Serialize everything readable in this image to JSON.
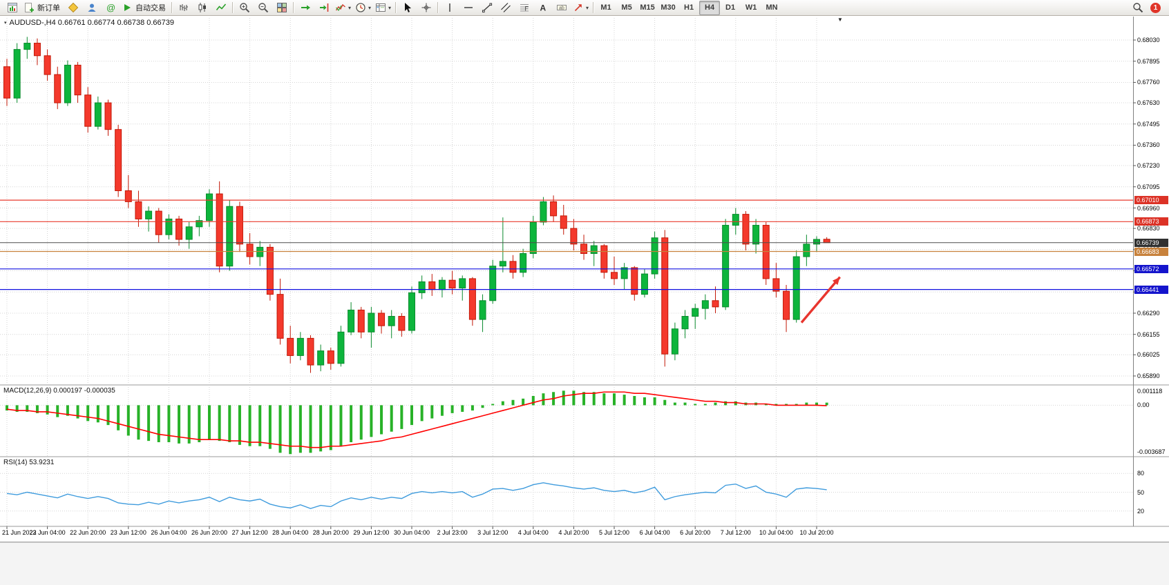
{
  "icons": {
    "symbol_marker": "▾",
    "expand_arrow": "▼",
    "dropdown_caret": "▾"
  },
  "toolbar": {
    "items": [
      {
        "t": "btn",
        "name": "new-chart-button",
        "icon": "chart-window-icon"
      },
      {
        "t": "btnlabel",
        "name": "new-order-button",
        "icon": "new-order-icon",
        "label": "新订单"
      },
      {
        "t": "btn",
        "name": "metaeditor-button",
        "icon": "metaeditor-icon"
      },
      {
        "t": "btn",
        "name": "navigator-button",
        "icon": "navigator-icon"
      },
      {
        "t": "btn",
        "name": "community-button",
        "icon": "community-icon"
      },
      {
        "t": "btnlabel",
        "name": "autotrading-button",
        "icon": "autotrading-icon",
        "label": "自动交易"
      },
      {
        "t": "sep"
      },
      {
        "t": "btn",
        "name": "bar-chart-button",
        "icon": "bar-chart-icon"
      },
      {
        "t": "btn",
        "name": "candlestick-chart-button",
        "icon": "candlestick-icon"
      },
      {
        "t": "btn",
        "name": "line-chart-button",
        "icon": "line-chart-icon"
      },
      {
        "t": "sep"
      },
      {
        "t": "btn",
        "name": "zoom-in-button",
        "icon": "zoom-in-icon"
      },
      {
        "t": "btn",
        "name": "zoom-out-button",
        "icon": "zoom-out-icon"
      },
      {
        "t": "btn",
        "name": "tile-windows-button",
        "icon": "tile-windows-icon"
      },
      {
        "t": "sep"
      },
      {
        "t": "btn",
        "name": "auto-scroll-button",
        "icon": "auto-scroll-icon"
      },
      {
        "t": "btn",
        "name": "chart-shift-button",
        "icon": "chart-shift-icon"
      },
      {
        "t": "drop",
        "name": "indicators-dropdown",
        "icon": "indicators-icon"
      },
      {
        "t": "drop",
        "name": "periods-dropdown",
        "icon": "clock-icon"
      },
      {
        "t": "drop",
        "name": "templates-dropdown",
        "icon": "templates-icon"
      },
      {
        "t": "sep"
      },
      {
        "t": "btn",
        "name": "cursor-button",
        "icon": "cursor-icon"
      },
      {
        "t": "btn",
        "name": "crosshair-button",
        "icon": "crosshair-icon"
      },
      {
        "t": "sep"
      },
      {
        "t": "btn",
        "name": "vertical-line-button",
        "icon": "vertical-line-icon"
      },
      {
        "t": "btn",
        "name": "horizontal-line-button",
        "icon": "horizontal-line-icon"
      },
      {
        "t": "btn",
        "name": "trendline-button",
        "icon": "trendline-icon"
      },
      {
        "t": "btn",
        "name": "channel-button",
        "icon": "channel-icon"
      },
      {
        "t": "btn",
        "name": "fibonacci-button",
        "icon": "fibonacci-icon"
      },
      {
        "t": "btn",
        "name": "text-button",
        "icon": "text-icon"
      },
      {
        "t": "btn",
        "name": "text-label-button",
        "icon": "text-label-icon"
      },
      {
        "t": "drop",
        "name": "arrows-dropdown",
        "icon": "arrow-tool-icon"
      },
      {
        "t": "sep"
      }
    ],
    "timeframes": [
      "M1",
      "M5",
      "M15",
      "M30",
      "H1",
      "H4",
      "D1",
      "W1",
      "MN"
    ],
    "active_timeframe": "H4",
    "notification_badge": "1"
  },
  "chart": {
    "title": "AUDUSD-,H4  0.66761 0.66774 0.66738 0.66739",
    "symbol": "AUDUSD-",
    "period": "H4"
  },
  "chart_data": {
    "type": "candlestick",
    "symbol": "AUDUSD",
    "timeframe": "H4",
    "bars_per_label": 4,
    "x_labels": [
      "21 Jun 2023",
      "22 Jun 04:00",
      "22 Jun 20:00",
      "23 Jun 12:00",
      "26 Jun 04:00",
      "26 Jun 20:00",
      "27 Jun 12:00",
      "28 Jun 04:00",
      "28 Jun 20:00",
      "29 Jun 12:00",
      "30 Jun 04:00",
      "2 Jul 23:00",
      "3 Jul 12:00",
      "4 Jul 04:00",
      "4 Jul 20:00",
      "5 Jul 12:00",
      "6 Jul 04:00",
      "6 Jul 20:00",
      "7 Jul 12:00",
      "10 Jul 04:00",
      "10 Jul 20:00"
    ],
    "price_axis_labels": [
      "0.68030",
      "0.67895",
      "0.67760",
      "0.67630",
      "0.67495",
      "0.67360",
      "0.67230",
      "0.67095",
      "0.66960",
      "0.66830",
      "0.66695",
      "0.66560",
      "0.66425",
      "0.66290",
      "0.66155",
      "0.66025",
      "0.65890"
    ],
    "candles": [
      [
        0.6786,
        0.6791,
        0.6761,
        0.6766
      ],
      [
        0.6766,
        0.6801,
        0.6763,
        0.6797
      ],
      [
        0.6797,
        0.6805,
        0.6791,
        0.6801
      ],
      [
        0.6801,
        0.6804,
        0.6787,
        0.6793
      ],
      [
        0.6793,
        0.6797,
        0.6777,
        0.6781
      ],
      [
        0.6781,
        0.6786,
        0.6759,
        0.6763
      ],
      [
        0.6763,
        0.679,
        0.6761,
        0.6787
      ],
      [
        0.6787,
        0.6789,
        0.6763,
        0.6768
      ],
      [
        0.6768,
        0.6773,
        0.6744,
        0.6748
      ],
      [
        0.6748,
        0.6767,
        0.6746,
        0.6763
      ],
      [
        0.6763,
        0.6765,
        0.6742,
        0.6746
      ],
      [
        0.6746,
        0.6749,
        0.6703,
        0.6707
      ],
      [
        0.6707,
        0.6717,
        0.6696,
        0.67
      ],
      [
        0.67,
        0.6707,
        0.6684,
        0.6689
      ],
      [
        0.6689,
        0.6697,
        0.6681,
        0.6694
      ],
      [
        0.6694,
        0.6696,
        0.6674,
        0.6679
      ],
      [
        0.6679,
        0.6692,
        0.6676,
        0.6689
      ],
      [
        0.6689,
        0.6691,
        0.6672,
        0.6676
      ],
      [
        0.6676,
        0.6687,
        0.667,
        0.6684
      ],
      [
        0.6684,
        0.6691,
        0.6678,
        0.6688
      ],
      [
        0.6688,
        0.6708,
        0.6684,
        0.6705
      ],
      [
        0.6705,
        0.6713,
        0.6655,
        0.6659
      ],
      [
        0.6659,
        0.6701,
        0.6656,
        0.6697
      ],
      [
        0.6697,
        0.67,
        0.6668,
        0.6673
      ],
      [
        0.6673,
        0.668,
        0.666,
        0.6665
      ],
      [
        0.6665,
        0.6675,
        0.6659,
        0.6671
      ],
      [
        0.6671,
        0.6673,
        0.6637,
        0.6641
      ],
      [
        0.6641,
        0.6651,
        0.6609,
        0.6613
      ],
      [
        0.6613,
        0.6621,
        0.6597,
        0.6602
      ],
      [
        0.6602,
        0.6617,
        0.6599,
        0.6613
      ],
      [
        0.6613,
        0.6615,
        0.6591,
        0.6596
      ],
      [
        0.6596,
        0.6609,
        0.6592,
        0.6605
      ],
      [
        0.6605,
        0.6607,
        0.6593,
        0.6597
      ],
      [
        0.6597,
        0.6621,
        0.6595,
        0.6617
      ],
      [
        0.6617,
        0.6636,
        0.6615,
        0.6631
      ],
      [
        0.6631,
        0.6633,
        0.6613,
        0.6617
      ],
      [
        0.6617,
        0.6633,
        0.6607,
        0.6629
      ],
      [
        0.6629,
        0.6631,
        0.6616,
        0.6621
      ],
      [
        0.6621,
        0.6631,
        0.6613,
        0.6627
      ],
      [
        0.6627,
        0.6629,
        0.6614,
        0.6618
      ],
      [
        0.6618,
        0.6646,
        0.6616,
        0.6642
      ],
      [
        0.6642,
        0.6653,
        0.6638,
        0.6649
      ],
      [
        0.6649,
        0.6654,
        0.664,
        0.6644
      ],
      [
        0.6644,
        0.6652,
        0.6639,
        0.665
      ],
      [
        0.665,
        0.6656,
        0.6641,
        0.6645
      ],
      [
        0.6645,
        0.6653,
        0.6637,
        0.6651
      ],
      [
        0.6651,
        0.6652,
        0.6621,
        0.6625
      ],
      [
        0.6625,
        0.6641,
        0.6617,
        0.6637
      ],
      [
        0.6637,
        0.6663,
        0.6635,
        0.6659
      ],
      [
        0.6659,
        0.669,
        0.6655,
        0.6662
      ],
      [
        0.6662,
        0.6666,
        0.6651,
        0.6655
      ],
      [
        0.6655,
        0.667,
        0.6652,
        0.6667
      ],
      [
        0.6667,
        0.6691,
        0.6664,
        0.6687
      ],
      [
        0.6687,
        0.6703,
        0.6685,
        0.67
      ],
      [
        0.67,
        0.6704,
        0.6687,
        0.6691
      ],
      [
        0.6691,
        0.6698,
        0.6679,
        0.6683
      ],
      [
        0.6683,
        0.6689,
        0.6669,
        0.6673
      ],
      [
        0.6673,
        0.6679,
        0.6663,
        0.6667
      ],
      [
        0.6667,
        0.6675,
        0.6659,
        0.6672
      ],
      [
        0.6672,
        0.6673,
        0.6651,
        0.6655
      ],
      [
        0.6655,
        0.6665,
        0.6647,
        0.6651
      ],
      [
        0.6651,
        0.6661,
        0.6644,
        0.6658
      ],
      [
        0.6658,
        0.6659,
        0.6637,
        0.6641
      ],
      [
        0.6641,
        0.6657,
        0.6639,
        0.6654
      ],
      [
        0.6654,
        0.6681,
        0.6651,
        0.6677
      ],
      [
        0.6677,
        0.6682,
        0.6595,
        0.6603
      ],
      [
        0.6603,
        0.6623,
        0.6599,
        0.6619
      ],
      [
        0.6619,
        0.6631,
        0.6613,
        0.6627
      ],
      [
        0.6627,
        0.6635,
        0.6619,
        0.6632
      ],
      [
        0.6632,
        0.6641,
        0.6625,
        0.6637
      ],
      [
        0.6637,
        0.6646,
        0.6629,
        0.6633
      ],
      [
        0.6633,
        0.6689,
        0.6631,
        0.6685
      ],
      [
        0.6685,
        0.6696,
        0.6679,
        0.6692
      ],
      [
        0.6692,
        0.6694,
        0.6669,
        0.6673
      ],
      [
        0.6673,
        0.6689,
        0.6667,
        0.6685
      ],
      [
        0.6685,
        0.6687,
        0.6647,
        0.6651
      ],
      [
        0.6651,
        0.6661,
        0.6639,
        0.6643
      ],
      [
        0.6643,
        0.6647,
        0.6617,
        0.6625
      ],
      [
        0.6625,
        0.6669,
        0.6623,
        0.6665
      ],
      [
        0.6665,
        0.6679,
        0.6659,
        0.6673
      ],
      [
        0.6673,
        0.6678,
        0.6668,
        0.6676
      ],
      [
        0.66761,
        0.66774,
        0.66738,
        0.66739
      ]
    ],
    "levels": [
      {
        "price": 0.6701,
        "label": "0.67010",
        "box_color": "#dc3226",
        "line_color": "#e8392c",
        "name": "resistance-line-1"
      },
      {
        "price": 0.66873,
        "label": "0.66873",
        "box_color": "#dc3226",
        "line_color": "#e8392c",
        "name": "resistance-line-2"
      },
      {
        "price": 0.66739,
        "label": "0.66739",
        "box_color": "#303030",
        "line_color": "#4d4d4d",
        "name": "current-price-line"
      },
      {
        "price": 0.66683,
        "label": "0.66683",
        "box_color": "#c8823c",
        "line_color": "#c8823c",
        "name": "pivot-line"
      },
      {
        "price": 0.66572,
        "label": "0.66572",
        "box_color": "#1414cc",
        "line_color": "#1010e0",
        "name": "support-line-1"
      },
      {
        "price": 0.66441,
        "label": "0.66441",
        "box_color": "#1414cc",
        "line_color": "#1010e0",
        "name": "support-line-2"
      }
    ],
    "annotations": [
      {
        "type": "arrow",
        "from_bar": 78.5,
        "from_price": 0.6623,
        "to_bar": 82.3,
        "to_price": 0.6652,
        "color": "#e8352e"
      }
    ],
    "colors": {
      "up": "#0db53c",
      "up_border": "#0a8a2d",
      "down": "#f4392c",
      "down_border": "#c21807",
      "macd_histogram": "#28b228",
      "macd_signal": "#ff0000",
      "rsi_line": "#3e9bdd",
      "grid": "#d4d4d4",
      "axis_text": "#000000"
    }
  },
  "macd": {
    "label": "MACD(12,26,9) 0.000197 -0.000035",
    "axis_labels": [
      "0.001118",
      "0.00",
      "-0.003687"
    ],
    "scale_max": 0.001118,
    "scale_min": -0.003687,
    "histogram": [
      -0.0004,
      -0.0005,
      -0.0005,
      -0.0006,
      -0.0007,
      -0.0009,
      -0.0008,
      -0.001,
      -0.0012,
      -0.0013,
      -0.0015,
      -0.0019,
      -0.0023,
      -0.0026,
      -0.0027,
      -0.0028,
      -0.0028,
      -0.0029,
      -0.0029,
      -0.0028,
      -0.0026,
      -0.0027,
      -0.0028,
      -0.003,
      -0.0031,
      -0.0031,
      -0.0033,
      -0.0036,
      -0.0037,
      -0.0036,
      -0.0036,
      -0.0035,
      -0.0034,
      -0.0031,
      -0.0028,
      -0.0026,
      -0.0024,
      -0.0022,
      -0.002,
      -0.0018,
      -0.0015,
      -0.0012,
      -0.001,
      -0.0008,
      -0.0006,
      -0.0005,
      -0.0004,
      -0.0002,
      0.0001,
      0.0003,
      0.0004,
      0.0005,
      0.0007,
      0.0009,
      0.001,
      0.0011,
      0.0011,
      0.001,
      0.001,
      0.0009,
      0.0009,
      0.0008,
      0.0007,
      0.0006,
      0.0006,
      0.0004,
      0.0002,
      0.0002,
      0.0001,
      0.0001,
      0.0002,
      0.0003,
      0.0003,
      0.0002,
      0.0002,
      0.0001,
      0.0001,
      0.0001,
      0.0001,
      0.0002,
      0.0002,
      0.000197
    ],
    "signal": [
      -0.0003,
      -0.0004,
      -0.0004,
      -0.0005,
      -0.0005,
      -0.0006,
      -0.0007,
      -0.0008,
      -0.0009,
      -0.001,
      -0.0012,
      -0.0014,
      -0.0016,
      -0.0018,
      -0.002,
      -0.0022,
      -0.0023,
      -0.0024,
      -0.0025,
      -0.0026,
      -0.0026,
      -0.0026,
      -0.0027,
      -0.0027,
      -0.0028,
      -0.0028,
      -0.0029,
      -0.003,
      -0.0031,
      -0.0031,
      -0.0032,
      -0.0032,
      -0.0031,
      -0.0031,
      -0.003,
      -0.0029,
      -0.0028,
      -0.0027,
      -0.0025,
      -0.0024,
      -0.0022,
      -0.002,
      -0.0018,
      -0.0016,
      -0.0014,
      -0.0012,
      -0.001,
      -0.0008,
      -0.0006,
      -0.0004,
      -0.0002,
      0,
      0.0002,
      0.0004,
      0.0005,
      0.0007,
      0.0008,
      0.0009,
      0.0009,
      0.001,
      0.001,
      0.001,
      0.0009,
      0.0009,
      0.0008,
      0.0007,
      0.0006,
      0.0005,
      0.0004,
      0.0003,
      0.0003,
      0.0002,
      0.0002,
      0.0001,
      0.0001,
      0.0001,
      0,
      0,
      0,
      0,
      0,
      -3.5e-05
    ]
  },
  "rsi": {
    "label": "RSI(14) 53.9231",
    "axis_labels": [
      {
        "text": "80",
        "value": 80
      },
      {
        "text": "50",
        "value": 50
      },
      {
        "text": "20",
        "value": 20
      }
    ],
    "values": [
      48,
      46,
      50,
      47,
      44,
      41,
      47,
      43,
      40,
      43,
      40,
      33,
      31,
      30,
      34,
      31,
      36,
      33,
      36,
      38,
      42,
      35,
      42,
      38,
      36,
      39,
      31,
      27,
      25,
      30,
      24,
      29,
      27,
      36,
      41,
      38,
      42,
      39,
      42,
      40,
      48,
      51,
      49,
      51,
      49,
      51,
      42,
      47,
      55,
      56,
      53,
      56,
      62,
      65,
      62,
      60,
      57,
      55,
      57,
      53,
      51,
      53,
      49,
      52,
      58,
      38,
      43,
      46,
      48,
      50,
      49,
      61,
      63,
      56,
      60,
      50,
      47,
      42,
      55,
      57,
      56,
      53.9231
    ]
  }
}
